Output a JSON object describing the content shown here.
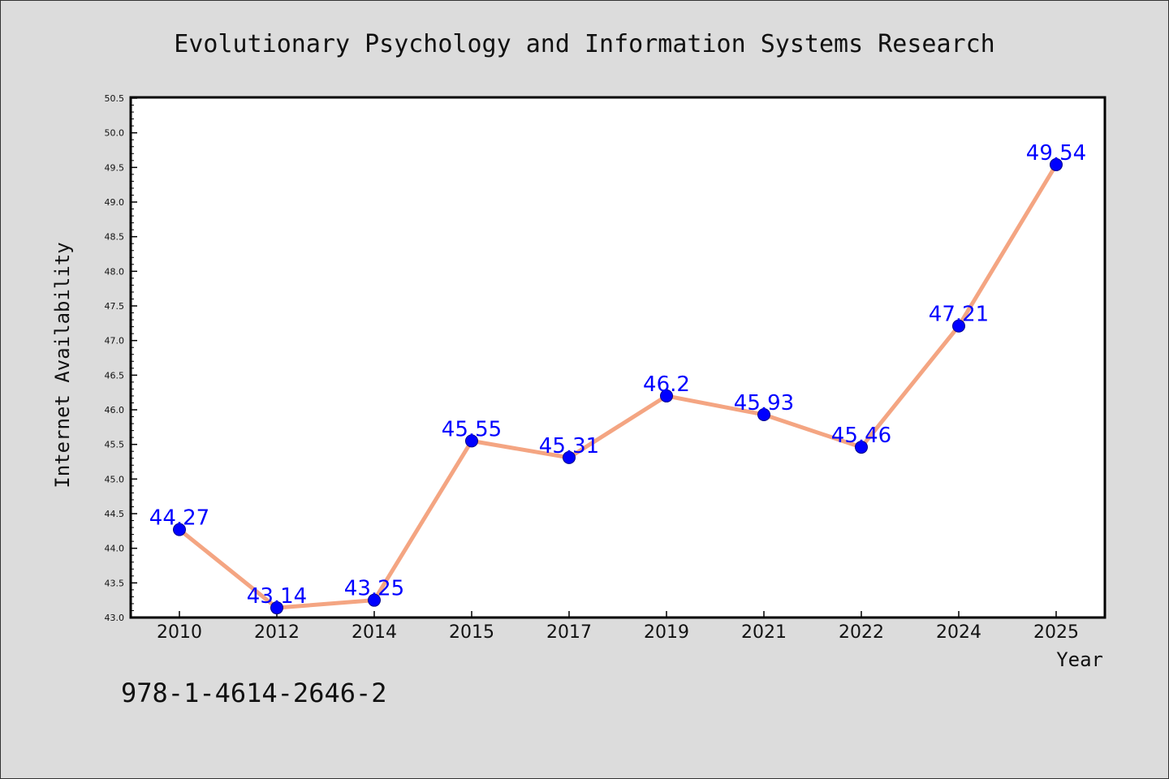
{
  "chart_data": {
    "type": "line",
    "title": "Evolutionary Psychology and Information Systems Research",
    "xlabel": "Year",
    "ylabel": "Internet Availability",
    "categories": [
      "2010",
      "2012",
      "2014",
      "2015",
      "2017",
      "2019",
      "2021",
      "2022",
      "2024",
      "2025"
    ],
    "series": [
      {
        "values": [
          44.27,
          43.14,
          43.25,
          45.55,
          45.31,
          46.2,
          45.93,
          45.46,
          47.21,
          49.54
        ],
        "data_labels": [
          "44.27",
          "43.14",
          "43.25",
          "45.55",
          "45.31",
          "46.2",
          "45.93",
          "45.46",
          "47.21",
          "49.54"
        ]
      }
    ],
    "ylim": [
      43.0,
      50.5
    ],
    "yticks": [
      "43.0",
      "43.5",
      "44.0",
      "44.5",
      "45.0",
      "45.5",
      "46.0",
      "46.5",
      "47.0",
      "47.5",
      "48.0",
      "48.5",
      "49.0",
      "49.5",
      "50.0",
      "50.5"
    ],
    "grid": false,
    "legend": "none",
    "colors": {
      "line": "#f4a582",
      "marker": "#0000ff",
      "data_label": "#0000ff",
      "background": "#dcdcdc",
      "plot_background": "#ffffff"
    }
  },
  "footer_text": "978-1-4614-2646-2"
}
